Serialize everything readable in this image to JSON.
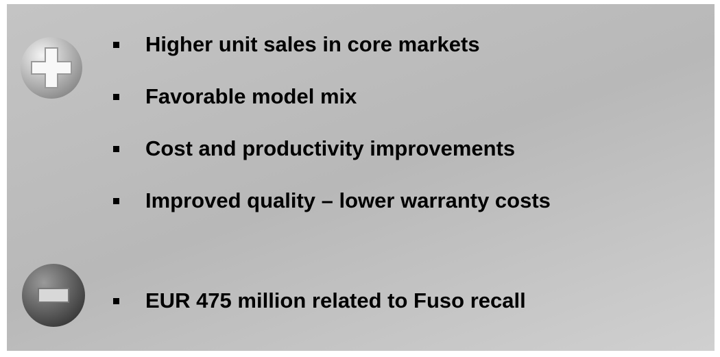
{
  "positives": [
    "Higher unit sales in core markets",
    "Favorable model mix",
    "Cost and productivity improvements",
    "Improved quality – lower warranty costs"
  ],
  "negatives": [
    "EUR 475 million related to Fuso recall"
  ]
}
